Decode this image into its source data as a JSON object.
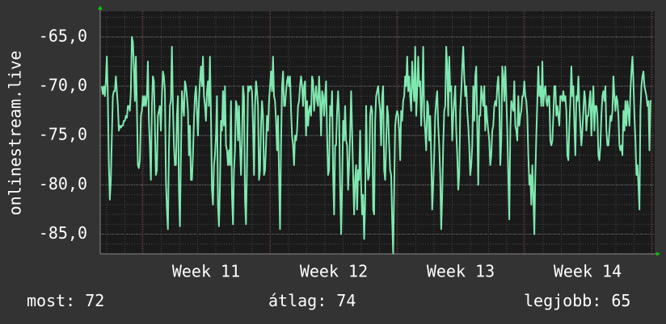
{
  "chart_data": {
    "type": "line",
    "title": "",
    "ylabel": "onlinestream.live",
    "xlabel": "",
    "ylim": [
      -87.0,
      -62.4
    ],
    "x_ticks": [
      "Week 11",
      "Week 12",
      "Week 13",
      "Week 14"
    ],
    "y_ticks": [
      "-65,0",
      "-70,0",
      "-75,0",
      "-80,0",
      "-85,0"
    ],
    "y_tick_values": [
      -65,
      -70,
      -75,
      -80,
      -85
    ],
    "grid": true,
    "legend": "none",
    "colors": {
      "line": "#7fe8b0",
      "background": "#333333",
      "plot": "#1a1a1a",
      "grid": "#4a4a4a",
      "axis_arrow": "#00cc00"
    },
    "series": [
      {
        "values": [
          -70,
          -70.8,
          -70,
          -71,
          -69.5,
          -67,
          -71,
          -78,
          -81.5,
          -79.5,
          -75,
          -71,
          -70.5,
          -70.5,
          -69,
          -70.5,
          -72,
          -74.5,
          -74,
          -74.2,
          -74,
          -74,
          -73.5,
          -73.5,
          -73,
          -73.2,
          -72,
          -72,
          -72.5,
          -70.5,
          -65,
          -65.5,
          -68,
          -71.5,
          -67,
          -72,
          -78,
          -78.3,
          -77.5,
          -73,
          -72.5,
          -71,
          -72,
          -71,
          -72,
          -71,
          -67.5,
          -73.5,
          -76,
          -79.5,
          -72,
          -69,
          -69.5,
          -74,
          -79,
          -78.5,
          -73,
          -72.5,
          -72,
          -74.5,
          -71,
          -68.5,
          -69,
          -70.5,
          -79.5,
          -82.5,
          -84.5,
          -76.5,
          -72,
          -71.5,
          -66,
          -72,
          -76,
          -78,
          -78,
          -73,
          -71,
          -80.5,
          -84.2,
          -77,
          -70.5,
          -72,
          -73,
          -69.5,
          -70,
          -71,
          -72.5,
          -77,
          -74,
          -79.5,
          -79.5,
          -77,
          -73.5,
          -71,
          -70,
          -72.5,
          -75,
          -71.5,
          -69.5,
          -68,
          -70,
          -67,
          -71,
          -72,
          -73.5,
          -70.5,
          -69.5,
          -72,
          -67,
          -73,
          -80.5,
          -82,
          -78,
          -77,
          -75,
          -71,
          -82,
          -84.2,
          -80,
          -73.5,
          -74.5,
          -70.5,
          -74,
          -70,
          -76,
          -76.5,
          -78,
          -76.5,
          -78,
          -71.5,
          -81,
          -84,
          -78.5,
          -76.5,
          -71.5,
          -72,
          -75.5,
          -72,
          -76,
          -79,
          -75.5,
          -70,
          -71,
          -81.5,
          -84,
          -78,
          -70,
          -70.5,
          -70,
          -70,
          -70.5,
          -74,
          -79,
          -72,
          -69.5,
          -70.5,
          -72,
          -79.5,
          -78.5,
          -74,
          -71.5,
          -73,
          -79,
          -78.5,
          -76,
          -73,
          -74.5,
          -71.5,
          -70,
          -68.5,
          -70.5,
          -67,
          -71,
          -71.5,
          -73.5,
          -76.5,
          -73,
          -79,
          -84.5,
          -76,
          -70,
          -68.5,
          -72,
          -72,
          -70.5,
          -69.5,
          -69,
          -70,
          -69,
          -72.5,
          -75,
          -76,
          -78,
          -75,
          -75.5,
          -74.5,
          -72,
          -71.5,
          -70,
          -69,
          -70,
          -72,
          -70,
          -69.5,
          -75,
          -71.5,
          -74,
          -72.5,
          -72,
          -73,
          -69,
          -69.5,
          -72.5,
          -71,
          -70,
          -71.5,
          -72,
          -69,
          -71.5,
          -75,
          -70.5,
          -71,
          -73,
          -71,
          -69.5,
          -75,
          -79,
          -78.5,
          -72,
          -73,
          -70.5,
          -79,
          -83,
          -76,
          -76,
          -72.5,
          -70.5,
          -73,
          -80,
          -85,
          -80,
          -73.5,
          -75.5,
          -72,
          -75.5,
          -76,
          -80.5,
          -78,
          -75,
          -70.5,
          -74.5,
          -79,
          -83,
          -79.5,
          -78,
          -82.5,
          -78.5,
          -79.5,
          -74.5,
          -80,
          -83,
          -81,
          -85.5,
          -82,
          -72,
          -77.5,
          -79.5,
          -79,
          -73,
          -72,
          -72.5,
          -82.5,
          -83,
          -73.5,
          -71,
          -70.5,
          -70,
          -71.5,
          -72.5,
          -76,
          -71,
          -70,
          -78.5,
          -79.5,
          -76,
          -72,
          -73,
          -76,
          -78.5,
          -79,
          -83.5,
          -87,
          -80.5,
          -74,
          -73,
          -72.5,
          -73,
          -74.5,
          -77.5,
          -72.5,
          -73.5,
          -71.5,
          -71,
          -69,
          -70,
          -67,
          -70.5,
          -69,
          -71,
          -72.5,
          -67.5,
          -70,
          -71.5,
          -66,
          -73,
          -70.5,
          -67,
          -70,
          -69.5,
          -74,
          -71,
          -66,
          -73,
          -74.5,
          -76.5,
          -71.5,
          -72,
          -75.5,
          -73,
          -77,
          -82.5,
          -80,
          -77,
          -73,
          -71.5,
          -70.5,
          -74,
          -76,
          -79,
          -84.5,
          -81,
          -76,
          -72.5,
          -72,
          -66,
          -68,
          -73,
          -67,
          -70.5,
          -70,
          -75.5,
          -73,
          -71.5,
          -70,
          -74.5,
          -77,
          -80.5,
          -79,
          -72.5,
          -70.5,
          -68,
          -66,
          -69,
          -71,
          -70,
          -72.5,
          -74,
          -76,
          -79,
          -78,
          -76,
          -70,
          -73.5,
          -69,
          -68,
          -74,
          -80,
          -73,
          -73,
          -70,
          -71,
          -72,
          -70,
          -74.5,
          -72,
          -73.5,
          -74.5,
          -75.5,
          -78,
          -77,
          -74.5,
          -74,
          -72,
          -71.5,
          -72,
          -70,
          -69,
          -71.5,
          -78,
          -75.5,
          -68,
          -69,
          -71.5,
          -68,
          -71,
          -74.5,
          -79,
          -83.5,
          -74.5,
          -71.5,
          -72,
          -72.5,
          -69.5,
          -74,
          -74.5,
          -75.5,
          -71,
          -74,
          -73,
          -72.5,
          -71,
          -71,
          -69.5,
          -71,
          -71.5,
          -73,
          -77,
          -80,
          -79,
          -82,
          -78,
          -81,
          -85,
          -79,
          -75,
          -71.5,
          -68,
          -71,
          -70,
          -72,
          -67.5,
          -72,
          -70.5,
          -70,
          -71.5,
          -72,
          -71,
          -71,
          -75.5,
          -76,
          -75.5,
          -73,
          -70,
          -70,
          -73,
          -72,
          -73,
          -74,
          -71,
          -71,
          -71.5,
          -70.5,
          -71.5,
          -71,
          -72.5,
          -77,
          -77.5,
          -74,
          -71.5,
          -68,
          -71,
          -70,
          -74,
          -77,
          -71,
          -71.5,
          -69,
          -72,
          -74,
          -76,
          -74.5,
          -72.5,
          -70.5,
          -71.5,
          -74.5,
          -73,
          -73,
          -71.5,
          -70.5,
          -75,
          -72,
          -70,
          -74.5,
          -72,
          -72,
          -73,
          -77,
          -77.5,
          -76,
          -73,
          -71,
          -70.5,
          -71.5,
          -70,
          -74.5,
          -76,
          -76,
          -74.5,
          -73,
          -73.5,
          -72.5,
          -69,
          -71,
          -72.5,
          -71,
          -71.5,
          -73,
          -76,
          -76.5,
          -76,
          -77,
          -72.5,
          -74.5,
          -71.5,
          -74,
          -71.5,
          -72.5,
          -74,
          -70.5,
          -68.5,
          -67,
          -69.5,
          -73,
          -75.5,
          -79,
          -78,
          -80,
          -82.5,
          -72.5,
          -70,
          -69,
          -68.5,
          -70,
          -70.5,
          -71,
          -72,
          -71.5,
          -76.5,
          -71.5,
          -71.5
        ]
      }
    ]
  },
  "stats": {
    "current": "most: 72",
    "average": "átlag: 74",
    "best": "legjobb: 65"
  }
}
